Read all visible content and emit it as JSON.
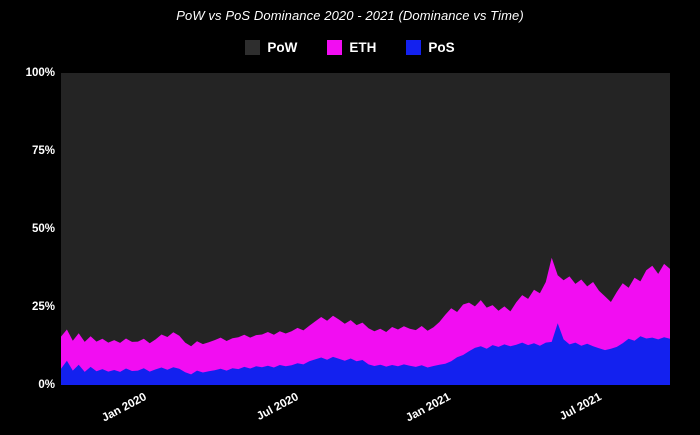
{
  "title": "PoW vs PoS Dominance 2020 - 2021 (Dominance vs Time)",
  "legend": [
    {
      "label": "PoW",
      "color": "#2e2e2e"
    },
    {
      "label": "ETH",
      "color": "#f20df2"
    },
    {
      "label": "PoS",
      "color": "#1321ef"
    }
  ],
  "colors": {
    "page_bg": "#000000",
    "plot_bg_pow_fill": "#242424",
    "eth_fill": "#f20df2",
    "pos_fill": "#1321ef",
    "text": "#ffffff"
  },
  "chart_data": {
    "type": "area",
    "stacking": "percent-stacked",
    "title": "PoW vs PoS Dominance 2020 - 2021 (Dominance vs Time)",
    "xlabel": "",
    "ylabel": "",
    "ylim": [
      0,
      100
    ],
    "grid": false,
    "legend_position": "top-center",
    "x_range": [
      "2019-10-01",
      "2021-09-25"
    ],
    "sampling": "weekly (values estimated from pixels)",
    "x_ticks": [
      {
        "label": "Jan 2020",
        "pos": 0.135
      },
      {
        "label": "Jul 2020",
        "pos": 0.384
      },
      {
        "label": "Jan 2021",
        "pos": 0.634
      },
      {
        "label": "Jul 2021",
        "pos": 0.882
      }
    ],
    "y_ticks": [
      "0%",
      "25%",
      "50%",
      "75%",
      "100%"
    ],
    "series": [
      {
        "name": "PoS",
        "color": "#1321ef",
        "values": [
          5.2,
          7.8,
          4.6,
          6.5,
          4.2,
          5.8,
          4.4,
          5.1,
          4.3,
          4.8,
          4.2,
          5.3,
          4.5,
          4.6,
          5.4,
          4.3,
          5.0,
          5.6,
          4.9,
          5.7,
          5.2,
          4.1,
          3.4,
          4.6,
          4.0,
          4.4,
          4.7,
          5.2,
          4.6,
          5.4,
          5.1,
          5.8,
          5.3,
          6.0,
          5.7,
          6.2,
          5.6,
          6.4,
          6.0,
          6.3,
          7.0,
          6.6,
          7.6,
          8.2,
          8.8,
          8.1,
          9.0,
          8.4,
          7.8,
          8.5,
          7.6,
          8.0,
          6.6,
          6.1,
          6.5,
          5.9,
          6.4,
          6.0,
          6.6,
          6.2,
          5.8,
          6.3,
          5.6,
          6.1,
          6.5,
          6.8,
          7.6,
          8.9,
          9.6,
          10.8,
          11.9,
          12.4,
          11.6,
          12.8,
          12.2,
          13.0,
          12.4,
          12.9,
          13.6,
          12.8,
          13.4,
          12.6,
          13.6,
          13.8,
          19.8,
          14.6,
          13.0,
          13.6,
          12.6,
          13.2,
          12.4,
          11.8,
          11.2,
          11.6,
          12.2,
          13.4,
          14.8,
          14.2,
          15.6,
          14.9,
          15.2,
          14.6,
          15.3,
          14.8
        ]
      },
      {
        "name": "ETH",
        "color": "#f20df2",
        "values": [
          10.3,
          10.0,
          9.6,
          10.1,
          9.6,
          9.8,
          9.5,
          9.7,
          9.3,
          9.6,
          9.3,
          9.6,
          9.3,
          9.3,
          9.4,
          9.1,
          9.6,
          10.6,
          10.5,
          11.2,
          10.6,
          9.5,
          9.0,
          9.4,
          9.1,
          9.3,
          9.7,
          10.0,
          9.5,
          9.6,
          10.2,
          10.3,
          9.9,
          10.0,
          10.5,
          10.8,
          10.5,
          10.8,
          10.5,
          10.9,
          11.3,
          10.9,
          11.4,
          12.2,
          13.0,
          12.5,
          13.2,
          12.6,
          11.8,
          12.3,
          11.6,
          12.0,
          11.6,
          11.1,
          11.5,
          11.1,
          12.2,
          11.8,
          12.2,
          11.8,
          11.8,
          12.6,
          11.8,
          12.4,
          13.7,
          15.7,
          17.0,
          14.5,
          16.2,
          15.6,
          13.3,
          14.8,
          13.2,
          12.8,
          11.6,
          12.2,
          11.2,
          13.6,
          15.2,
          14.8,
          17.1,
          16.8,
          19.4,
          27.0,
          15.4,
          19.0,
          21.8,
          18.8,
          21.2,
          18.4,
          20.6,
          18.4,
          17.2,
          15.0,
          17.6,
          19.2,
          16.4,
          20.2,
          17.6,
          21.9,
          23.0,
          21.0,
          23.5,
          22.4
        ]
      },
      {
        "name": "PoW",
        "color": "#242424",
        "values_rule": "100 - ETH - PoS (fills remainder of stack to 100%)"
      }
    ]
  }
}
